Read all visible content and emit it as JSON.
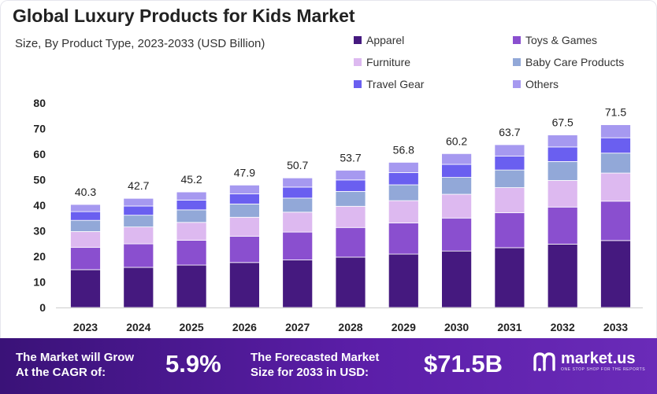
{
  "title": "Global Luxury Products for Kids Market",
  "subtitle": "Size, By Product Type, 2023-2033 (USD Billion)",
  "colors": {
    "Apparel": "#45197f",
    "Toys & Games": "#8a4fcf",
    "Furniture": "#ddb9f0",
    "Baby Care Products": "#92a8d8",
    "Travel Gear": "#6a5ff0",
    "Others": "#a699f0"
  },
  "chart_data": {
    "type": "bar",
    "stacked": true,
    "categories": [
      "2023",
      "2024",
      "2025",
      "2026",
      "2027",
      "2028",
      "2029",
      "2030",
      "2031",
      "2032",
      "2033"
    ],
    "series": [
      {
        "name": "Apparel",
        "values": [
          14.8,
          15.7,
          16.6,
          17.6,
          18.6,
          19.7,
          20.9,
          22.1,
          23.4,
          24.8,
          26.2
        ]
      },
      {
        "name": "Toys & Games",
        "values": [
          8.7,
          9.2,
          9.7,
          10.3,
          10.9,
          11.6,
          12.2,
          12.9,
          13.7,
          14.5,
          15.4
        ]
      },
      {
        "name": "Furniture",
        "values": [
          6.2,
          6.6,
          7.0,
          7.4,
          7.8,
          8.3,
          8.7,
          9.3,
          9.8,
          10.4,
          11.0
        ]
      },
      {
        "name": "Baby Care Products",
        "values": [
          4.4,
          4.6,
          4.9,
          5.2,
          5.5,
          5.8,
          6.2,
          6.6,
          6.9,
          7.4,
          7.8
        ]
      },
      {
        "name": "Travel Gear",
        "values": [
          3.4,
          3.6,
          3.8,
          4.0,
          4.3,
          4.5,
          4.8,
          5.1,
          5.4,
          5.7,
          6.0
        ]
      },
      {
        "name": "Others",
        "values": [
          2.8,
          3.0,
          3.2,
          3.4,
          3.6,
          3.8,
          4.0,
          4.2,
          4.5,
          4.7,
          5.1
        ]
      }
    ],
    "totals": [
      40.3,
      42.7,
      45.2,
      47.9,
      50.7,
      53.7,
      56.8,
      60.2,
      63.7,
      67.5,
      71.5
    ],
    "total_labels": [
      "40.3",
      "42.7",
      "45.2",
      "47.9",
      "50.7",
      "53.7",
      "56.8",
      "60.2",
      "63.7",
      "67.5",
      "71.5"
    ],
    "yticks": [
      0,
      10,
      20,
      30,
      40,
      50,
      60,
      70,
      80
    ],
    "ylim": [
      0,
      80
    ],
    "legend_position": "top-right",
    "grid": false
  },
  "footer": {
    "cagr_line1": "The Market will Grow",
    "cagr_line2": "At the CAGR of:",
    "cagr_value": "5.9%",
    "forecast_line1": "The Forecasted Market",
    "forecast_line2": "Size for 2033 in USD:",
    "forecast_value": "$71.5B",
    "brand_name": "market.us",
    "brand_tagline": "ONE STOP SHOP FOR THE REPORTS"
  }
}
